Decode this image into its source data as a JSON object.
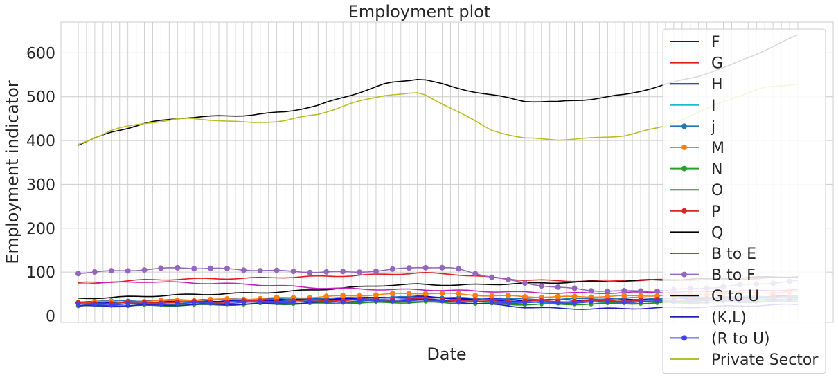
{
  "chart_data": {
    "type": "line",
    "title": "Employment plot",
    "xlabel": "Date",
    "ylabel": "Employment indicator",
    "ylim": [
      -15,
      670
    ],
    "yticks": [
      0,
      100,
      200,
      300,
      400,
      500,
      600
    ],
    "grid": true,
    "legend_position": "right",
    "x_tick_note": "overlapping quarterly date labels",
    "series": [
      {
        "name": "F",
        "color": "#0000ff",
        "marker": "none",
        "start": 31,
        "values_sparse": [
          31,
          32,
          33,
          35,
          36,
          37,
          38,
          39,
          40,
          41,
          42,
          40,
          38,
          37,
          36,
          37,
          38,
          39,
          40,
          42,
          44,
          45
        ]
      },
      {
        "name": "G",
        "color": "#e41a1c",
        "marker": "none",
        "start": 75,
        "values_sparse": [
          75,
          78,
          82,
          84,
          85,
          86,
          88,
          90,
          92,
          95,
          98,
          95,
          88,
          82,
          80,
          80,
          81,
          82,
          83,
          84,
          86,
          88
        ]
      },
      {
        "name": "H",
        "color": "#0000cc",
        "marker": "none",
        "start": 30,
        "values_sparse": [
          30,
          31,
          32,
          33,
          34,
          35,
          36,
          38,
          40,
          42,
          44,
          40,
          36,
          34,
          33,
          34,
          35,
          36,
          38,
          40,
          42,
          44
        ]
      },
      {
        "name": "I",
        "color": "#17becf",
        "marker": "none",
        "start": 27,
        "values_sparse": [
          27,
          28,
          29,
          30,
          31,
          32,
          33,
          34,
          35,
          36,
          37,
          34,
          31,
          30,
          30,
          31,
          32,
          33,
          34,
          36,
          38,
          40
        ]
      },
      {
        "name": "j",
        "color": "#1f77b4",
        "marker": "diamond",
        "start": 33,
        "values_sparse": [
          33,
          34,
          35,
          36,
          37,
          38,
          39,
          40,
          41,
          42,
          43,
          41,
          39,
          38,
          38,
          39,
          40,
          41,
          42,
          43,
          44,
          45
        ]
      },
      {
        "name": "M",
        "color": "#ff7f0e",
        "marker": "circle",
        "start": 31,
        "values_sparse": [
          31,
          32,
          33,
          35,
          37,
          39,
          41,
          43,
          46,
          49,
          52,
          50,
          46,
          44,
          43,
          44,
          45,
          47,
          49,
          51,
          53,
          55
        ]
      },
      {
        "name": "N",
        "color": "#2ca02c",
        "marker": "pentagon",
        "start": 23,
        "values_sparse": [
          23,
          24,
          25,
          26,
          27,
          28,
          29,
          30,
          31,
          32,
          34,
          31,
          28,
          27,
          27,
          28,
          29,
          30,
          31,
          33,
          35,
          37
        ]
      },
      {
        "name": "O",
        "color": "#228b22",
        "marker": "none",
        "start": 22,
        "values_sparse": [
          22,
          22,
          23,
          24,
          25,
          26,
          27,
          28,
          29,
          30,
          31,
          29,
          27,
          26,
          26,
          27,
          28,
          29,
          30,
          31,
          32,
          33
        ]
      },
      {
        "name": "P",
        "color": "#d62728",
        "marker": "circle",
        "start": 28,
        "values_sparse": [
          28,
          29,
          30,
          31,
          32,
          33,
          34,
          35,
          36,
          37,
          38,
          36,
          34,
          33,
          33,
          34,
          35,
          36,
          37,
          39,
          41,
          43
        ]
      },
      {
        "name": "Q",
        "color": "#000000",
        "marker": "none",
        "start": 40,
        "values_sparse": [
          40,
          42,
          45,
          48,
          50,
          52,
          55,
          60,
          65,
          70,
          72,
          70,
          72,
          74,
          76,
          78,
          80,
          82,
          84,
          86,
          88,
          90
        ]
      },
      {
        "name": "B to E",
        "color": "#c020c0",
        "marker": "none",
        "start": 74,
        "values_sparse": [
          74,
          76,
          78,
          76,
          74,
          72,
          68,
          64,
          62,
          60,
          60,
          58,
          56,
          54,
          52,
          52,
          53,
          54,
          55,
          56,
          58,
          60
        ]
      },
      {
        "name": "B to F",
        "color": "#9467bd",
        "marker": "circle",
        "start": 98,
        "values_sparse": [
          98,
          102,
          106,
          110,
          108,
          105,
          102,
          100,
          100,
          104,
          112,
          108,
          90,
          75,
          65,
          58,
          56,
          58,
          62,
          68,
          74,
          80
        ]
      },
      {
        "name": "G to U",
        "color": "#000000",
        "marker": "none",
        "start": 390,
        "values_sparse": [
          390,
          420,
          440,
          452,
          455,
          458,
          465,
          480,
          505,
          530,
          542,
          520,
          505,
          490,
          488,
          495,
          505,
          525,
          545,
          570,
          605,
          640
        ]
      },
      {
        "name": "(K,L)",
        "color": "#2222bb",
        "marker": "none",
        "start": 22,
        "values_sparse": [
          22,
          23,
          24,
          25,
          26,
          27,
          28,
          30,
          33,
          36,
          38,
          32,
          26,
          20,
          17,
          16,
          17,
          18,
          20,
          22,
          24,
          26
        ]
      },
      {
        "name": "(R to U)",
        "color": "#4040ee",
        "marker": "triangle",
        "start": 25,
        "values_sparse": [
          25,
          26,
          27,
          28,
          29,
          30,
          31,
          32,
          33,
          34,
          35,
          33,
          31,
          30,
          30,
          31,
          32,
          33,
          34,
          35,
          36,
          37
        ]
      },
      {
        "name": "Private Sector",
        "color": "#bcbd22",
        "marker": "none",
        "start": 390,
        "values_sparse": [
          390,
          425,
          440,
          450,
          447,
          440,
          445,
          460,
          485,
          505,
          508,
          470,
          425,
          405,
          402,
          405,
          412,
          430,
          460,
          495,
          520,
          530
        ]
      }
    ]
  }
}
